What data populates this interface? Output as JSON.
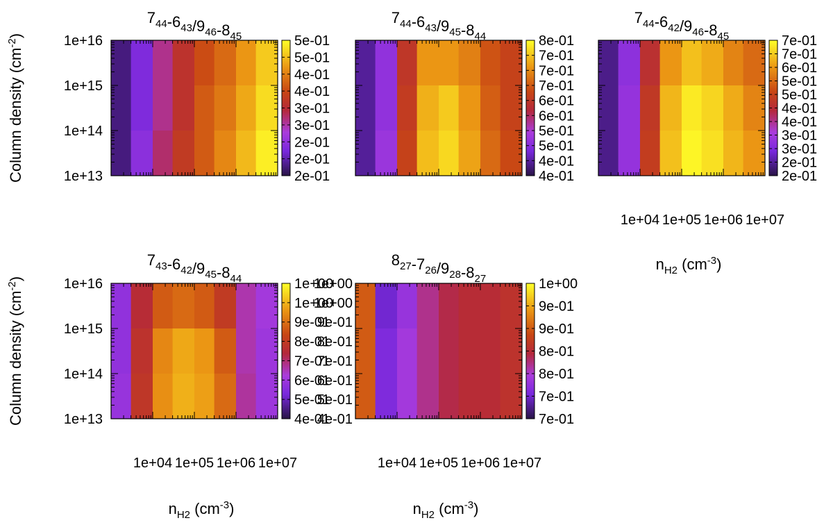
{
  "chart_data": [
    {
      "type": "heatmap",
      "title": {
        "parts": [
          [
            "7",
            "44"
          ],
          [
            "-6",
            "43"
          ],
          [
            "/9",
            "46"
          ],
          [
            "-8",
            "45"
          ]
        ]
      },
      "ylabel": "Column density (cm-2)",
      "xlabel": "",
      "x_ticks": [],
      "y_ticks": [
        "1e+16",
        "1e+15",
        "1e+14",
        "1e+13"
      ],
      "xlim": [
        1000,
        10000000
      ],
      "x_scale": "log",
      "ylim": [
        10000000000000.0,
        1e+16
      ],
      "y_scale": "log",
      "colorbar_ticks": [
        "5e-01",
        "5e-01",
        "4e-01",
        "4e-01",
        "3e-01",
        "3e-01",
        "2e-01",
        "2e-01",
        "2e-01"
      ],
      "value_range": [
        0.2,
        0.5
      ],
      "rows_n": [
        1e+16,
        1000000000000000.0,
        100000000000000.0
      ],
      "cols_nH2": [
        1000,
        3000,
        10000,
        30000,
        100000,
        300000,
        1000000,
        3000000
      ],
      "values": [
        [
          0.22,
          0.26,
          0.32,
          0.36,
          0.39,
          0.41,
          0.44,
          0.47
        ],
        [
          0.22,
          0.26,
          0.32,
          0.36,
          0.4,
          0.42,
          0.45,
          0.48
        ],
        [
          0.22,
          0.27,
          0.33,
          0.37,
          0.4,
          0.43,
          0.46,
          0.49
        ]
      ]
    },
    {
      "type": "heatmap",
      "title": {
        "parts": [
          [
            "7",
            "44"
          ],
          [
            "-6",
            "43"
          ],
          [
            "/9",
            "45"
          ],
          [
            "-8",
            "44"
          ]
        ]
      },
      "ylabel": "",
      "xlabel": "",
      "x_ticks": [],
      "y_ticks": [],
      "xlim": [
        1000,
        10000000
      ],
      "x_scale": "log",
      "ylim": [
        10000000000000.0,
        1e+16
      ],
      "y_scale": "log",
      "colorbar_ticks": [
        "8e-01",
        "7e-01",
        "7e-01",
        "7e-01",
        "6e-01",
        "6e-01",
        "5e-01",
        "5e-01",
        "4e-01",
        "4e-01"
      ],
      "value_range": [
        0.4,
        0.8
      ],
      "rows_n": [
        1e+16,
        1000000000000000.0,
        100000000000000.0
      ],
      "cols_nH2": [
        1000,
        3000,
        10000,
        30000,
        100000,
        300000,
        1000000,
        3000000
      ],
      "values": [
        [
          0.44,
          0.5,
          0.62,
          0.72,
          0.72,
          0.7,
          0.66,
          0.64
        ],
        [
          0.44,
          0.5,
          0.63,
          0.74,
          0.76,
          0.72,
          0.67,
          0.64
        ],
        [
          0.44,
          0.51,
          0.64,
          0.75,
          0.77,
          0.73,
          0.68,
          0.65
        ]
      ]
    },
    {
      "type": "heatmap",
      "title": {
        "parts": [
          [
            "7",
            "44"
          ],
          [
            "-6",
            "42"
          ],
          [
            "/9",
            "46"
          ],
          [
            "-8",
            "45"
          ]
        ]
      },
      "ylabel": "",
      "xlabel": "nH2 (cm-3)",
      "x_ticks": [
        "1e+04",
        "1e+05",
        "1e+06",
        "1e+07"
      ],
      "y_ticks": [],
      "xlim": [
        1000,
        10000000
      ],
      "x_scale": "log",
      "ylim": [
        10000000000000.0,
        1e+16
      ],
      "y_scale": "log",
      "colorbar_ticks": [
        "7e-01",
        "7e-01",
        "6e-01",
        "5e-01",
        "5e-01",
        "4e-01",
        "4e-01",
        "3e-01",
        "3e-01",
        "2e-01",
        "2e-01"
      ],
      "value_range": [
        0.2,
        0.7
      ],
      "rows_n": [
        1e+16,
        1000000000000000.0,
        100000000000000.0
      ],
      "cols_nH2": [
        1000,
        3000,
        10000,
        30000,
        100000,
        300000,
        1000000,
        3000000
      ],
      "values": [
        [
          0.24,
          0.32,
          0.46,
          0.6,
          0.64,
          0.62,
          0.58,
          0.55
        ],
        [
          0.24,
          0.33,
          0.48,
          0.63,
          0.68,
          0.66,
          0.62,
          0.58
        ],
        [
          0.24,
          0.33,
          0.49,
          0.64,
          0.69,
          0.67,
          0.63,
          0.6
        ]
      ]
    },
    {
      "type": "heatmap",
      "title": {
        "parts": [
          [
            "7",
            "43"
          ],
          [
            "-6",
            "42"
          ],
          [
            "/9",
            "45"
          ],
          [
            "-8",
            "44"
          ]
        ]
      },
      "ylabel": "Column density (cm-2)",
      "xlabel": "nH2 (cm-3)",
      "x_ticks": [
        "1e+04",
        "1e+05",
        "1e+06",
        "1e+07"
      ],
      "y_ticks": [
        "1e+16",
        "1e+15",
        "1e+14",
        "1e+13"
      ],
      "xlim": [
        1000,
        10000000
      ],
      "x_scale": "log",
      "ylim": [
        10000000000000.0,
        1e+16
      ],
      "y_scale": "log",
      "colorbar_ticks": [
        "1e+00",
        "1e+00",
        "9e-01",
        "8e-01",
        "7e-01",
        "6e-01",
        "5e-01",
        "4e-01"
      ],
      "value_range": [
        0.4,
        1.0
      ],
      "rows_n": [
        1e+16,
        1000000000000000.0,
        100000000000000.0
      ],
      "cols_nH2": [
        1000,
        3000,
        10000,
        30000,
        100000,
        300000,
        1000000,
        3000000
      ],
      "values": [
        [
          0.55,
          0.7,
          0.8,
          0.82,
          0.8,
          0.74,
          0.62,
          0.58
        ],
        [
          0.55,
          0.72,
          0.86,
          0.9,
          0.88,
          0.8,
          0.62,
          0.57
        ],
        [
          0.56,
          0.73,
          0.87,
          0.91,
          0.89,
          0.82,
          0.63,
          0.57
        ]
      ]
    },
    {
      "type": "heatmap",
      "title": {
        "parts": [
          [
            "8",
            "27"
          ],
          [
            "-7",
            "26"
          ],
          [
            "/9",
            "28"
          ],
          [
            "-8",
            "27"
          ]
        ]
      },
      "ylabel": "",
      "xlabel": "nH2 (cm-3)",
      "x_ticks": [
        "1e+04",
        "1e+05",
        "1e+06",
        "1e+07"
      ],
      "y_ticks": [
        "1e+00",
        "1e+00",
        "9e-01",
        "8e-01",
        "7e-01",
        "6e-01",
        "5e-01",
        "4e-01"
      ],
      "xlim": [
        1000,
        10000000
      ],
      "x_scale": "log",
      "ylim": [
        10000000000000.0,
        1e+16
      ],
      "y_scale": "log",
      "colorbar_ticks": [
        "1e+00",
        "9e-01",
        "9e-01",
        "8e-01",
        "8e-01",
        "7e-01",
        "7e-01"
      ],
      "value_range": [
        0.7,
        1.0
      ],
      "rows_n": [
        1e+16,
        1000000000000000.0,
        100000000000000.0
      ],
      "cols_nH2": [
        1000,
        3000,
        10000,
        30000,
        100000,
        300000,
        1000000,
        3000000
      ],
      "values": [
        [
          0.9,
          0.75,
          0.78,
          0.82,
          0.84,
          0.85,
          0.85,
          0.86
        ],
        [
          0.9,
          0.76,
          0.79,
          0.82,
          0.84,
          0.85,
          0.85,
          0.86
        ],
        [
          0.9,
          0.76,
          0.79,
          0.82,
          0.84,
          0.85,
          0.85,
          0.86
        ]
      ]
    }
  ]
}
